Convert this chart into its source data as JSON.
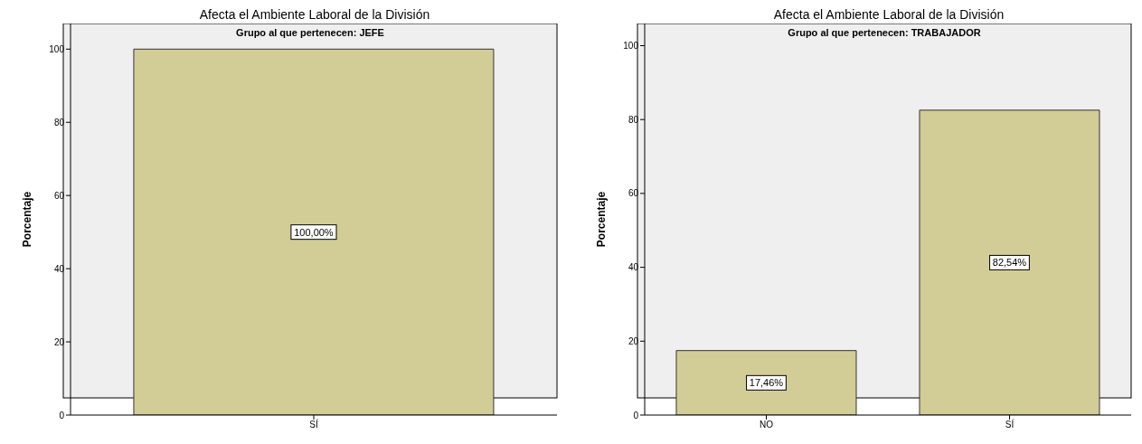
{
  "chart_data": [
    {
      "type": "bar",
      "title": "Afecta el Ambiente Laboral de la División",
      "subtitle": "Grupo al que pertenecen: JEFE",
      "ylabel": "Porcentaje",
      "categories": [
        "SÍ"
      ],
      "values": [
        100
      ],
      "value_labels": [
        "100,00%"
      ],
      "color": "#d2cd96",
      "ylim": [
        0,
        107
      ],
      "yticks": [
        0,
        20,
        40,
        60,
        80,
        100
      ],
      "grid": false,
      "legend": false
    },
    {
      "type": "bar",
      "title": "Afecta el Ambiente Laboral de la División",
      "subtitle": "Grupo al que pertenecen: TRABAJADOR",
      "ylabel": "Porcentaje",
      "categories": [
        "NO",
        "SÍ"
      ],
      "values": [
        17.46,
        82.54
      ],
      "value_labels": [
        "17,46%",
        "82,54%"
      ],
      "color": "#d2cd96",
      "ylim": [
        0,
        106
      ],
      "yticks": [
        0,
        20,
        40,
        60,
        80,
        100
      ],
      "grid": false,
      "legend": false
    }
  ]
}
